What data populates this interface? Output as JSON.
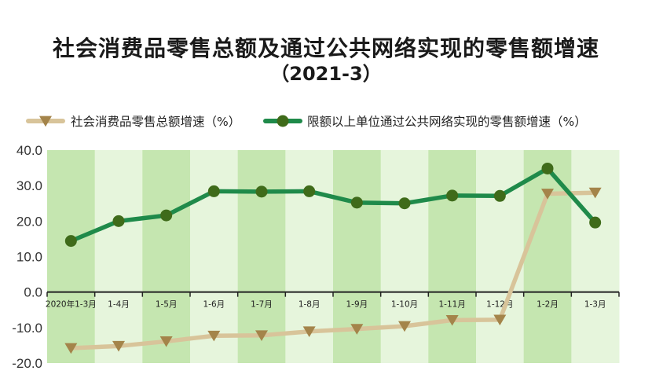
{
  "chart_data": {
    "type": "line",
    "title": "社会消费品零售总额及通过公共网络实现的零售额增速",
    "subtitle": "（2021-3）",
    "xlabel": "",
    "ylabel": "",
    "categories": [
      "2020年1-3月",
      "1-4月",
      "1-5月",
      "1-6月",
      "1-7月",
      "1-8月",
      "1-9月",
      "1-10月",
      "1-11月",
      "1-12月",
      "1-2月",
      "1-3月"
    ],
    "ylim": [
      -20,
      40
    ],
    "yticks": [
      "40.0",
      "30.0",
      "20.0",
      "10.0",
      "0.0",
      "-10.0",
      "-20.0"
    ],
    "legend_position": "top",
    "series": [
      {
        "name": "社会消费品零售总额增速（%）",
        "marker": "triangle-down",
        "line_color": "#d8c49a",
        "marker_color": "#a4844a",
        "values": [
          -15.8,
          -15.2,
          -13.9,
          -12.3,
          -12.2,
          -11.1,
          -10.4,
          -9.6,
          -7.9,
          -7.8,
          27.7,
          28.0
        ]
      },
      {
        "name": "限额以上单位通过公共网络实现的零售额增速（%）",
        "marker": "circle",
        "line_color": "#1f8a4a",
        "marker_color": "#3f6b1a",
        "values": [
          14.4,
          20.0,
          21.6,
          28.4,
          28.3,
          28.4,
          25.2,
          25.0,
          27.2,
          27.1,
          34.8,
          19.6
        ]
      }
    ],
    "band_colors": [
      "#c5e6b0",
      "#e6f5dc"
    ]
  }
}
